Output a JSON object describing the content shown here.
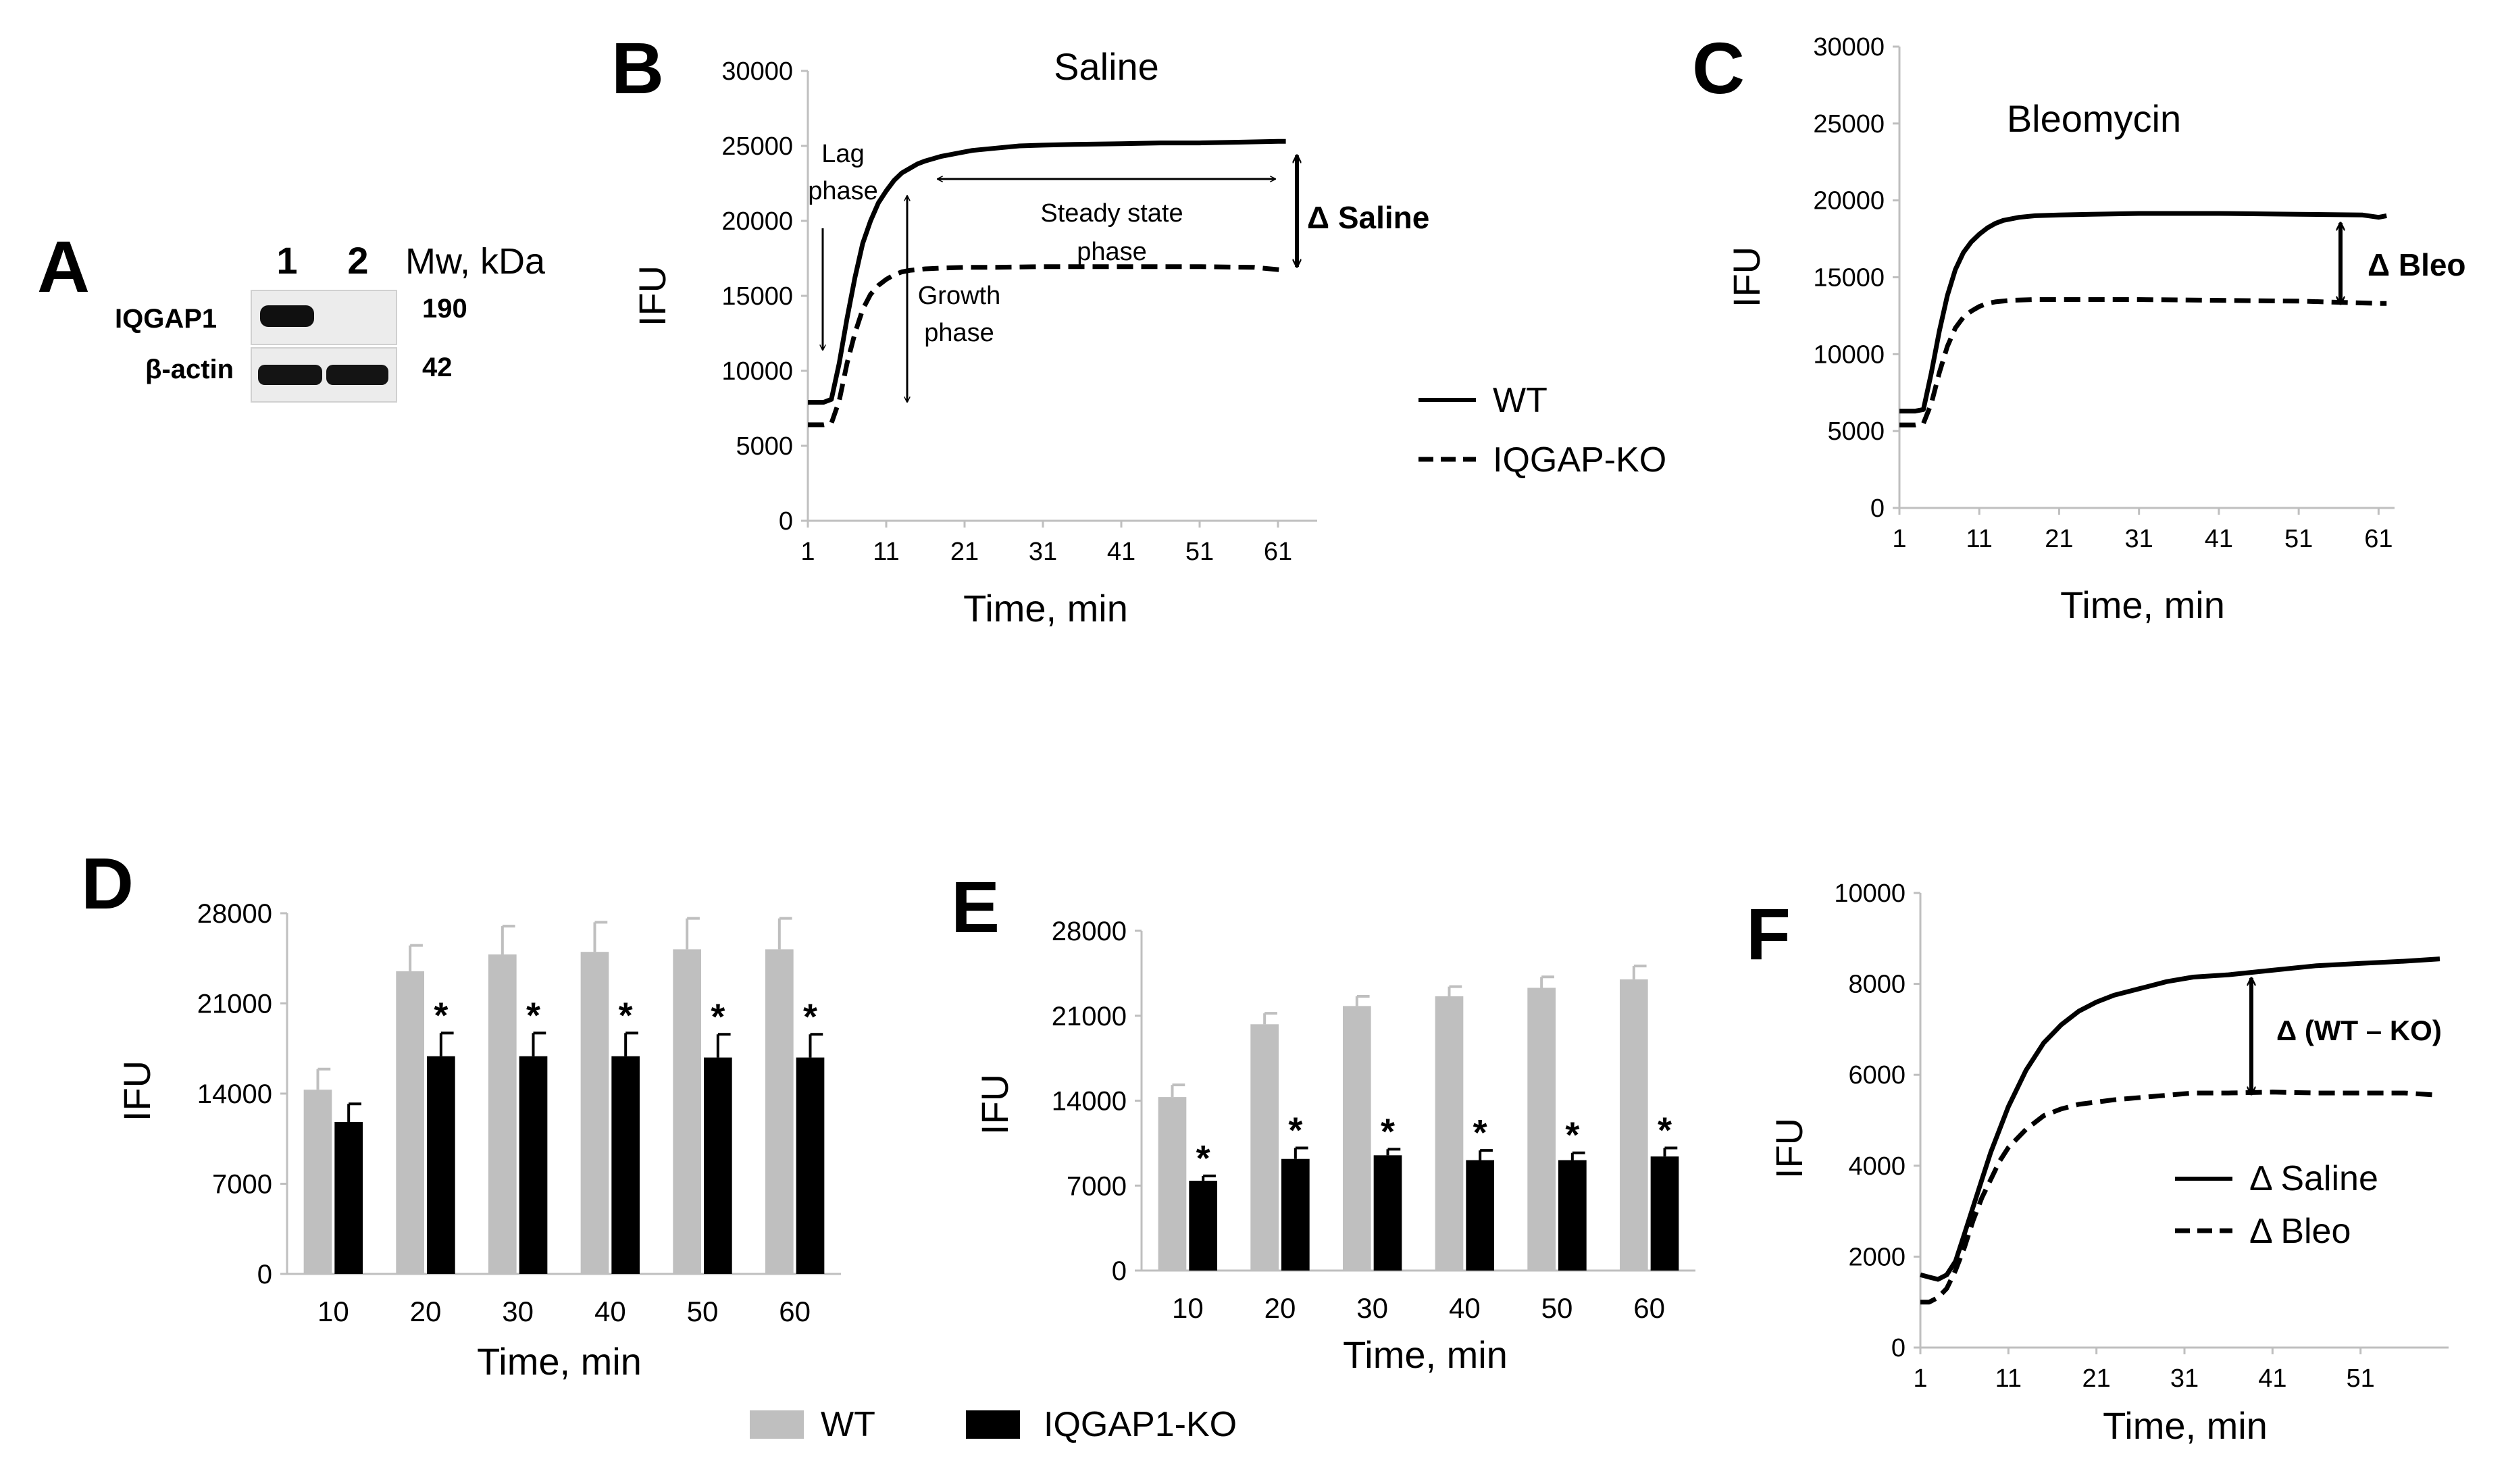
{
  "figure": {
    "panel_labels": [
      "A",
      "B",
      "C",
      "D",
      "E",
      "F"
    ]
  },
  "blot": {
    "lane_labels": [
      "1",
      "2"
    ],
    "mw_header": "Mw, kDa",
    "rows": [
      {
        "protein": "IQGAP1",
        "mw": "190"
      },
      {
        "protein": "β-actin",
        "mw": "42"
      }
    ]
  },
  "legends": {
    "bc": [
      "WT",
      "IQGAP-KO"
    ],
    "de": [
      "WT",
      "IQGAP1-KO"
    ],
    "f": [
      "Δ Saline",
      "Δ Bleo"
    ]
  },
  "colors": {
    "wt_bar": "#BFBFBF",
    "ko_bar": "#000000",
    "tick_text": "#595959",
    "axis": "#BFBFBF"
  },
  "chart_data": [
    {
      "panel": "B",
      "type": "line",
      "title": "Saline",
      "xlabel": "Time, min",
      "ylabel": "IFU",
      "xlim": [
        1,
        66
      ],
      "ylim": [
        0,
        30000
      ],
      "xticks": [
        1,
        11,
        21,
        31,
        41,
        51,
        61
      ],
      "yticks": [
        0,
        5000,
        10000,
        15000,
        20000,
        25000,
        30000
      ],
      "series": [
        {
          "name": "WT",
          "style": "solid",
          "x": [
            1,
            2,
            3,
            4,
            5,
            6,
            7,
            8,
            9,
            10,
            11,
            12,
            13,
            14,
            15,
            16,
            18,
            20,
            22,
            25,
            28,
            31,
            35,
            41,
            46,
            51,
            56,
            61,
            62
          ],
          "y": [
            7900,
            7900,
            7900,
            8100,
            10500,
            13500,
            16200,
            18500,
            20000,
            21200,
            22000,
            22700,
            23200,
            23500,
            23800,
            24000,
            24300,
            24500,
            24700,
            24850,
            25000,
            25050,
            25100,
            25150,
            25200,
            25200,
            25250,
            25300,
            25300
          ]
        },
        {
          "name": "IQGAP-KO",
          "style": "dashed",
          "x": [
            1,
            2,
            3,
            4,
            5,
            6,
            7,
            8,
            9,
            10,
            11,
            12,
            13,
            14,
            16,
            18,
            21,
            25,
            31,
            41,
            51,
            58,
            61,
            62
          ],
          "y": [
            6400,
            6400,
            6400,
            6500,
            8000,
            10500,
            12500,
            14100,
            15100,
            15700,
            16100,
            16400,
            16600,
            16700,
            16800,
            16850,
            16900,
            16900,
            16950,
            16950,
            16950,
            16900,
            16750,
            16700
          ]
        }
      ],
      "annotations": [
        {
          "text": "Lag",
          "kind": "label"
        },
        {
          "text": "phase",
          "kind": "label"
        },
        {
          "text": "Growth",
          "kind": "label"
        },
        {
          "text": "phase",
          "kind": "label"
        },
        {
          "text": "Steady state",
          "kind": "label"
        },
        {
          "text": "phase",
          "kind": "label"
        },
        {
          "text": "Δ Saline",
          "kind": "delta"
        }
      ]
    },
    {
      "panel": "C",
      "type": "line",
      "title": "Bleomycin",
      "xlabel": "Time, min",
      "ylabel": "IFU",
      "xlim": [
        1,
        63
      ],
      "ylim": [
        0,
        30000
      ],
      "xticks": [
        1,
        11,
        21,
        31,
        41,
        51,
        61
      ],
      "yticks": [
        0,
        5000,
        10000,
        15000,
        20000,
        25000,
        30000
      ],
      "series": [
        {
          "name": "WT",
          "style": "solid",
          "x": [
            1,
            2,
            3,
            4,
            5,
            6,
            7,
            8,
            9,
            10,
            11,
            12,
            13,
            14,
            16,
            18,
            21,
            25,
            31,
            41,
            51,
            59,
            61,
            62
          ],
          "y": [
            6300,
            6300,
            6300,
            6400,
            8800,
            11500,
            13800,
            15500,
            16600,
            17300,
            17800,
            18200,
            18500,
            18700,
            18900,
            19000,
            19050,
            19100,
            19150,
            19150,
            19100,
            19050,
            18900,
            19000
          ]
        },
        {
          "name": "IQGAP-KO",
          "style": "dashed",
          "x": [
            1,
            2,
            3,
            4,
            5,
            6,
            7,
            8,
            9,
            10,
            11,
            12,
            13,
            15,
            18,
            21,
            31,
            41,
            51,
            61,
            62
          ],
          "y": [
            5400,
            5400,
            5400,
            5500,
            6800,
            8800,
            10500,
            11700,
            12400,
            12800,
            13100,
            13300,
            13400,
            13500,
            13550,
            13550,
            13550,
            13500,
            13450,
            13300,
            13300
          ]
        }
      ],
      "annotations": [
        {
          "text": "Δ Bleo",
          "kind": "delta"
        }
      ]
    },
    {
      "panel": "D",
      "type": "bar",
      "xlabel": "Time, min",
      "ylabel": "IFU",
      "ylim": [
        0,
        28000
      ],
      "yticks": [
        0,
        7000,
        14000,
        21000,
        28000
      ],
      "categories": [
        "10",
        "20",
        "30",
        "40",
        "50",
        "60"
      ],
      "series": [
        {
          "name": "WT",
          "values": [
            14300,
            23500,
            24800,
            25000,
            25200,
            25200
          ],
          "errors": [
            1600,
            2000,
            2200,
            2300,
            2400,
            2400
          ]
        },
        {
          "name": "IQGAP1-KO",
          "values": [
            11800,
            16900,
            16900,
            16900,
            16800,
            16800
          ],
          "errors": [
            1400,
            1800,
            1800,
            1800,
            1800,
            1800
          ]
        }
      ],
      "significance": [
        "",
        "*",
        "*",
        "*",
        "*",
        "*"
      ]
    },
    {
      "panel": "E",
      "type": "bar",
      "xlabel": "Time, min",
      "ylabel": "IFU",
      "ylim": [
        0,
        28000
      ],
      "yticks": [
        0,
        7000,
        14000,
        21000,
        28000
      ],
      "categories": [
        "10",
        "20",
        "30",
        "40",
        "50",
        "60"
      ],
      "series": [
        {
          "name": "WT",
          "values": [
            14300,
            20300,
            21800,
            22600,
            23300,
            24000
          ],
          "errors": [
            1000,
            900,
            800,
            800,
            900,
            1100
          ]
        },
        {
          "name": "IQGAP1-KO",
          "values": [
            7400,
            9200,
            9500,
            9100,
            9100,
            9400
          ],
          "errors": [
            400,
            900,
            500,
            800,
            600,
            700
          ]
        }
      ],
      "significance": [
        "*",
        "*",
        "*",
        "*",
        "*",
        "*"
      ]
    },
    {
      "panel": "F",
      "type": "line",
      "xlabel": "Time, min",
      "ylabel": "IFU",
      "xlim": [
        1,
        61
      ],
      "ylim": [
        0,
        10000
      ],
      "xticks": [
        1,
        11,
        21,
        31,
        41,
        51
      ],
      "yticks": [
        0,
        2000,
        4000,
        6000,
        8000,
        10000
      ],
      "series": [
        {
          "name": "Δ Saline",
          "style": "solid",
          "x": [
            1,
            2,
            3,
            4,
            5,
            6,
            7,
            8,
            9,
            10,
            11,
            13,
            15,
            17,
            19,
            21,
            23,
            26,
            29,
            32,
            36,
            41,
            46,
            51,
            56,
            60
          ],
          "y": [
            1600,
            1550,
            1500,
            1600,
            1900,
            2500,
            3100,
            3700,
            4300,
            4800,
            5300,
            6100,
            6700,
            7100,
            7400,
            7600,
            7750,
            7900,
            8050,
            8150,
            8200,
            8300,
            8400,
            8450,
            8500,
            8550
          ]
        },
        {
          "name": "Δ Bleo",
          "style": "dashed",
          "x": [
            1,
            2,
            3,
            4,
            5,
            6,
            7,
            8,
            9,
            10,
            11,
            13,
            15,
            17,
            19,
            21,
            23,
            26,
            29,
            32,
            36,
            41,
            46,
            51,
            56,
            60
          ],
          "y": [
            1000,
            1000,
            1100,
            1300,
            1700,
            2200,
            2800,
            3300,
            3700,
            4100,
            4400,
            4800,
            5100,
            5250,
            5350,
            5400,
            5450,
            5500,
            5550,
            5600,
            5600,
            5620,
            5600,
            5600,
            5600,
            5550
          ]
        }
      ],
      "annotations": [
        {
          "text": "Δ (WT – KO)",
          "kind": "delta"
        }
      ]
    }
  ]
}
